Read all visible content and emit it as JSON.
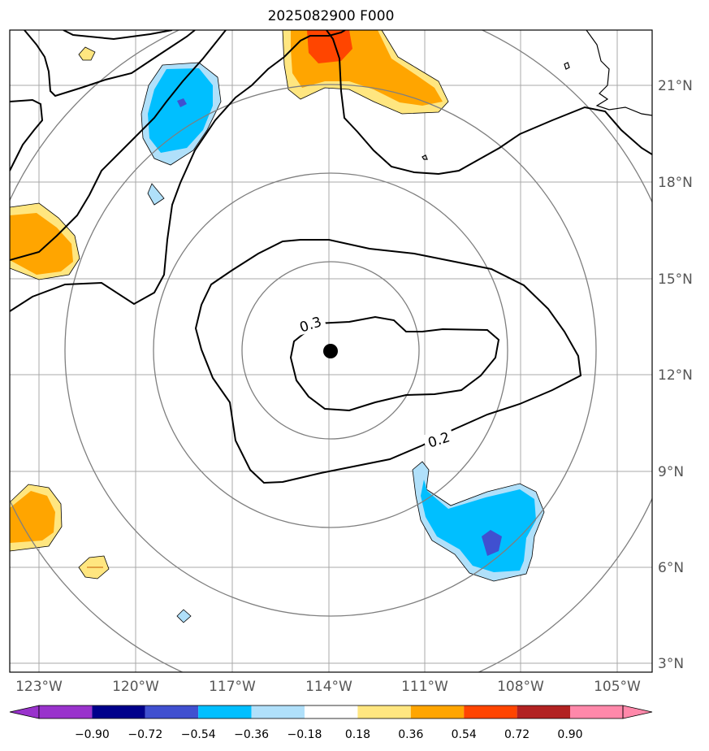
{
  "title": "2025082900 F000",
  "colors": {
    "purple": "#9932cc",
    "navy": "#00008b",
    "royalblue": "#4050d0",
    "deepskyblue": "#00bfff",
    "lightblue": "#b0e0fa",
    "white": "#ffffff",
    "lightyellow": "#ffe680",
    "orange": "#ffa500",
    "orangered": "#ff4500",
    "firebrick": "#b22222",
    "pink": "#ff88aa",
    "grid": "#999999",
    "rings": "#7f7f7f",
    "contour": "#000000"
  },
  "map": {
    "lon_ticks": [
      "123°W",
      "120°W",
      "117°W",
      "114°W",
      "111°W",
      "108°W",
      "105°W"
    ],
    "lat_ticks": [
      "3°N",
      "6°N",
      "9°N",
      "12°N",
      "15°N",
      "18°N",
      "21°N"
    ],
    "center_marker": "storm-center",
    "center_lon": -113.9,
    "center_lat": 12.7
  },
  "contour_labels": [
    "0.3",
    "0.2"
  ],
  "colorbar": {
    "ticks": [
      "−0.90",
      "−0.72",
      "−0.54",
      "−0.36",
      "−0.18",
      "0.18",
      "0.36",
      "0.54",
      "0.72",
      "0.90"
    ],
    "extend": "both"
  }
}
